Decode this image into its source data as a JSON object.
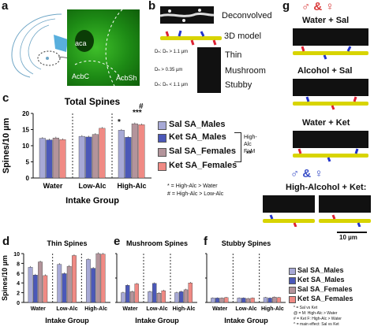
{
  "panels": {
    "a": {
      "label": "a",
      "regions": [
        "aca",
        "AcbC",
        "AcbSh"
      ]
    },
    "b": {
      "label": "b",
      "rows": [
        "Deconvolved",
        "3D model",
        "Thin",
        "Mushroom",
        "Stubby"
      ],
      "criteria": [
        "Dₕ: Dₙ > 1.1 µm",
        "Dₕ > 0.35 µm",
        "Dₕ: Dₙ < 1.1 µm"
      ]
    },
    "c": {
      "label": "c",
      "stat_top": "*",
      "stat_top2": "#",
      "stat_top3": "***"
    },
    "d": {
      "label": "d"
    },
    "e": {
      "label": "e"
    },
    "f": {
      "label": "f"
    },
    "g": {
      "label": "g",
      "sex_symbols": "♂ & ♀",
      "conditions": [
        "Water + Sal",
        "Alcohol + Sal",
        "Water + Ket",
        "High-Alcohol + Ket:"
      ],
      "scale": "10 µm"
    }
  },
  "legend": {
    "items": [
      "Sal SA_Males",
      "Ket SA_Males",
      "Sal SA_Females",
      "Ket SA_Females"
    ],
    "colors": [
      "#a7a9d6",
      "#4b58b8",
      "#b3949b",
      "#f08a84"
    ],
    "bracket_note": "High-Alc F>M",
    "bracket_stars": "**",
    "footnote_1": "* = High-Alc > Water",
    "footnote_2": "# = High-Alc > Low-Alc"
  },
  "small_legend": {
    "items": [
      "Sal SA_Males",
      "Ket SA_Males",
      "Sal SA_Females",
      "Ket SA_Females"
    ],
    "notes": [
      "* = Sal vs Ket",
      "@ = M: High-Alc > Water",
      "# = Ket F: High-Alc > Water",
      "^ = main effect: Sal vs Ket"
    ]
  },
  "chart_data": [
    {
      "type": "bar",
      "title": "Total Spines",
      "ylabel": "Spines/10 µm",
      "xlabel": "Intake Group",
      "categories": [
        "Water",
        "Low-Alc",
        "High-Alc"
      ],
      "ylim": [
        0,
        20
      ],
      "yticks": [
        "0",
        "5",
        "10",
        "15",
        "20"
      ],
      "series": [
        {
          "name": "Sal SA_Males",
          "values": [
            12.3,
            12.9,
            14.8
          ]
        },
        {
          "name": "Ket SA_Males",
          "values": [
            11.8,
            12.7,
            12.6
          ]
        },
        {
          "name": "Sal SA_Females",
          "values": [
            12.4,
            13.5,
            16.8
          ]
        },
        {
          "name": "Ket SA_Females",
          "values": [
            11.9,
            15.4,
            16.5
          ]
        }
      ]
    },
    {
      "type": "bar",
      "title": "Thin Spines",
      "ylabel": "Spines/10 µm",
      "xlabel": "Intake Group",
      "categories": [
        "Water",
        "Low-Alc",
        "High-Alc"
      ],
      "ylim": [
        0,
        10
      ],
      "yticks": [
        "0",
        "2",
        "4",
        "6",
        "8",
        "10"
      ],
      "series": [
        {
          "name": "Sal SA_Males",
          "values": [
            7.2,
            7.8,
            8.8
          ]
        },
        {
          "name": "Ket SA_Males",
          "values": [
            5.6,
            5.9,
            7.0
          ]
        },
        {
          "name": "Sal SA_Females",
          "values": [
            8.3,
            7.4,
            10.0
          ]
        },
        {
          "name": "Ket SA_Females",
          "values": [
            5.5,
            9.6,
            9.9
          ]
        }
      ]
    },
    {
      "type": "bar",
      "title": "Mushroom Spines",
      "categories": [
        "Water",
        "Low-Alc",
        "High-Alc"
      ],
      "ylim": [
        0,
        10
      ],
      "xlabel": "Intake Group",
      "series": [
        {
          "name": "Sal SA_Males",
          "values": [
            2.0,
            2.2,
            2.0
          ]
        },
        {
          "name": "Ket SA_Males",
          "values": [
            3.5,
            3.9,
            2.2
          ]
        },
        {
          "name": "Sal SA_Females",
          "values": [
            2.2,
            1.9,
            2.6
          ]
        },
        {
          "name": "Ket SA_Females",
          "values": [
            3.8,
            2.4,
            4.0
          ]
        }
      ]
    },
    {
      "type": "bar",
      "title": "Stubby Spines",
      "categories": [
        "Water",
        "Low-Alc",
        "High-Alc"
      ],
      "ylim": [
        0,
        10
      ],
      "xlabel": "Intake Group",
      "series": [
        {
          "name": "Sal SA_Males",
          "values": [
            0.9,
            0.9,
            1.0
          ]
        },
        {
          "name": "Ket SA_Males",
          "values": [
            0.9,
            0.9,
            0.9
          ]
        },
        {
          "name": "Sal SA_Females",
          "values": [
            0.9,
            0.8,
            1.1
          ]
        },
        {
          "name": "Ket SA_Females",
          "values": [
            1.0,
            0.9,
            1.0
          ]
        }
      ]
    }
  ]
}
